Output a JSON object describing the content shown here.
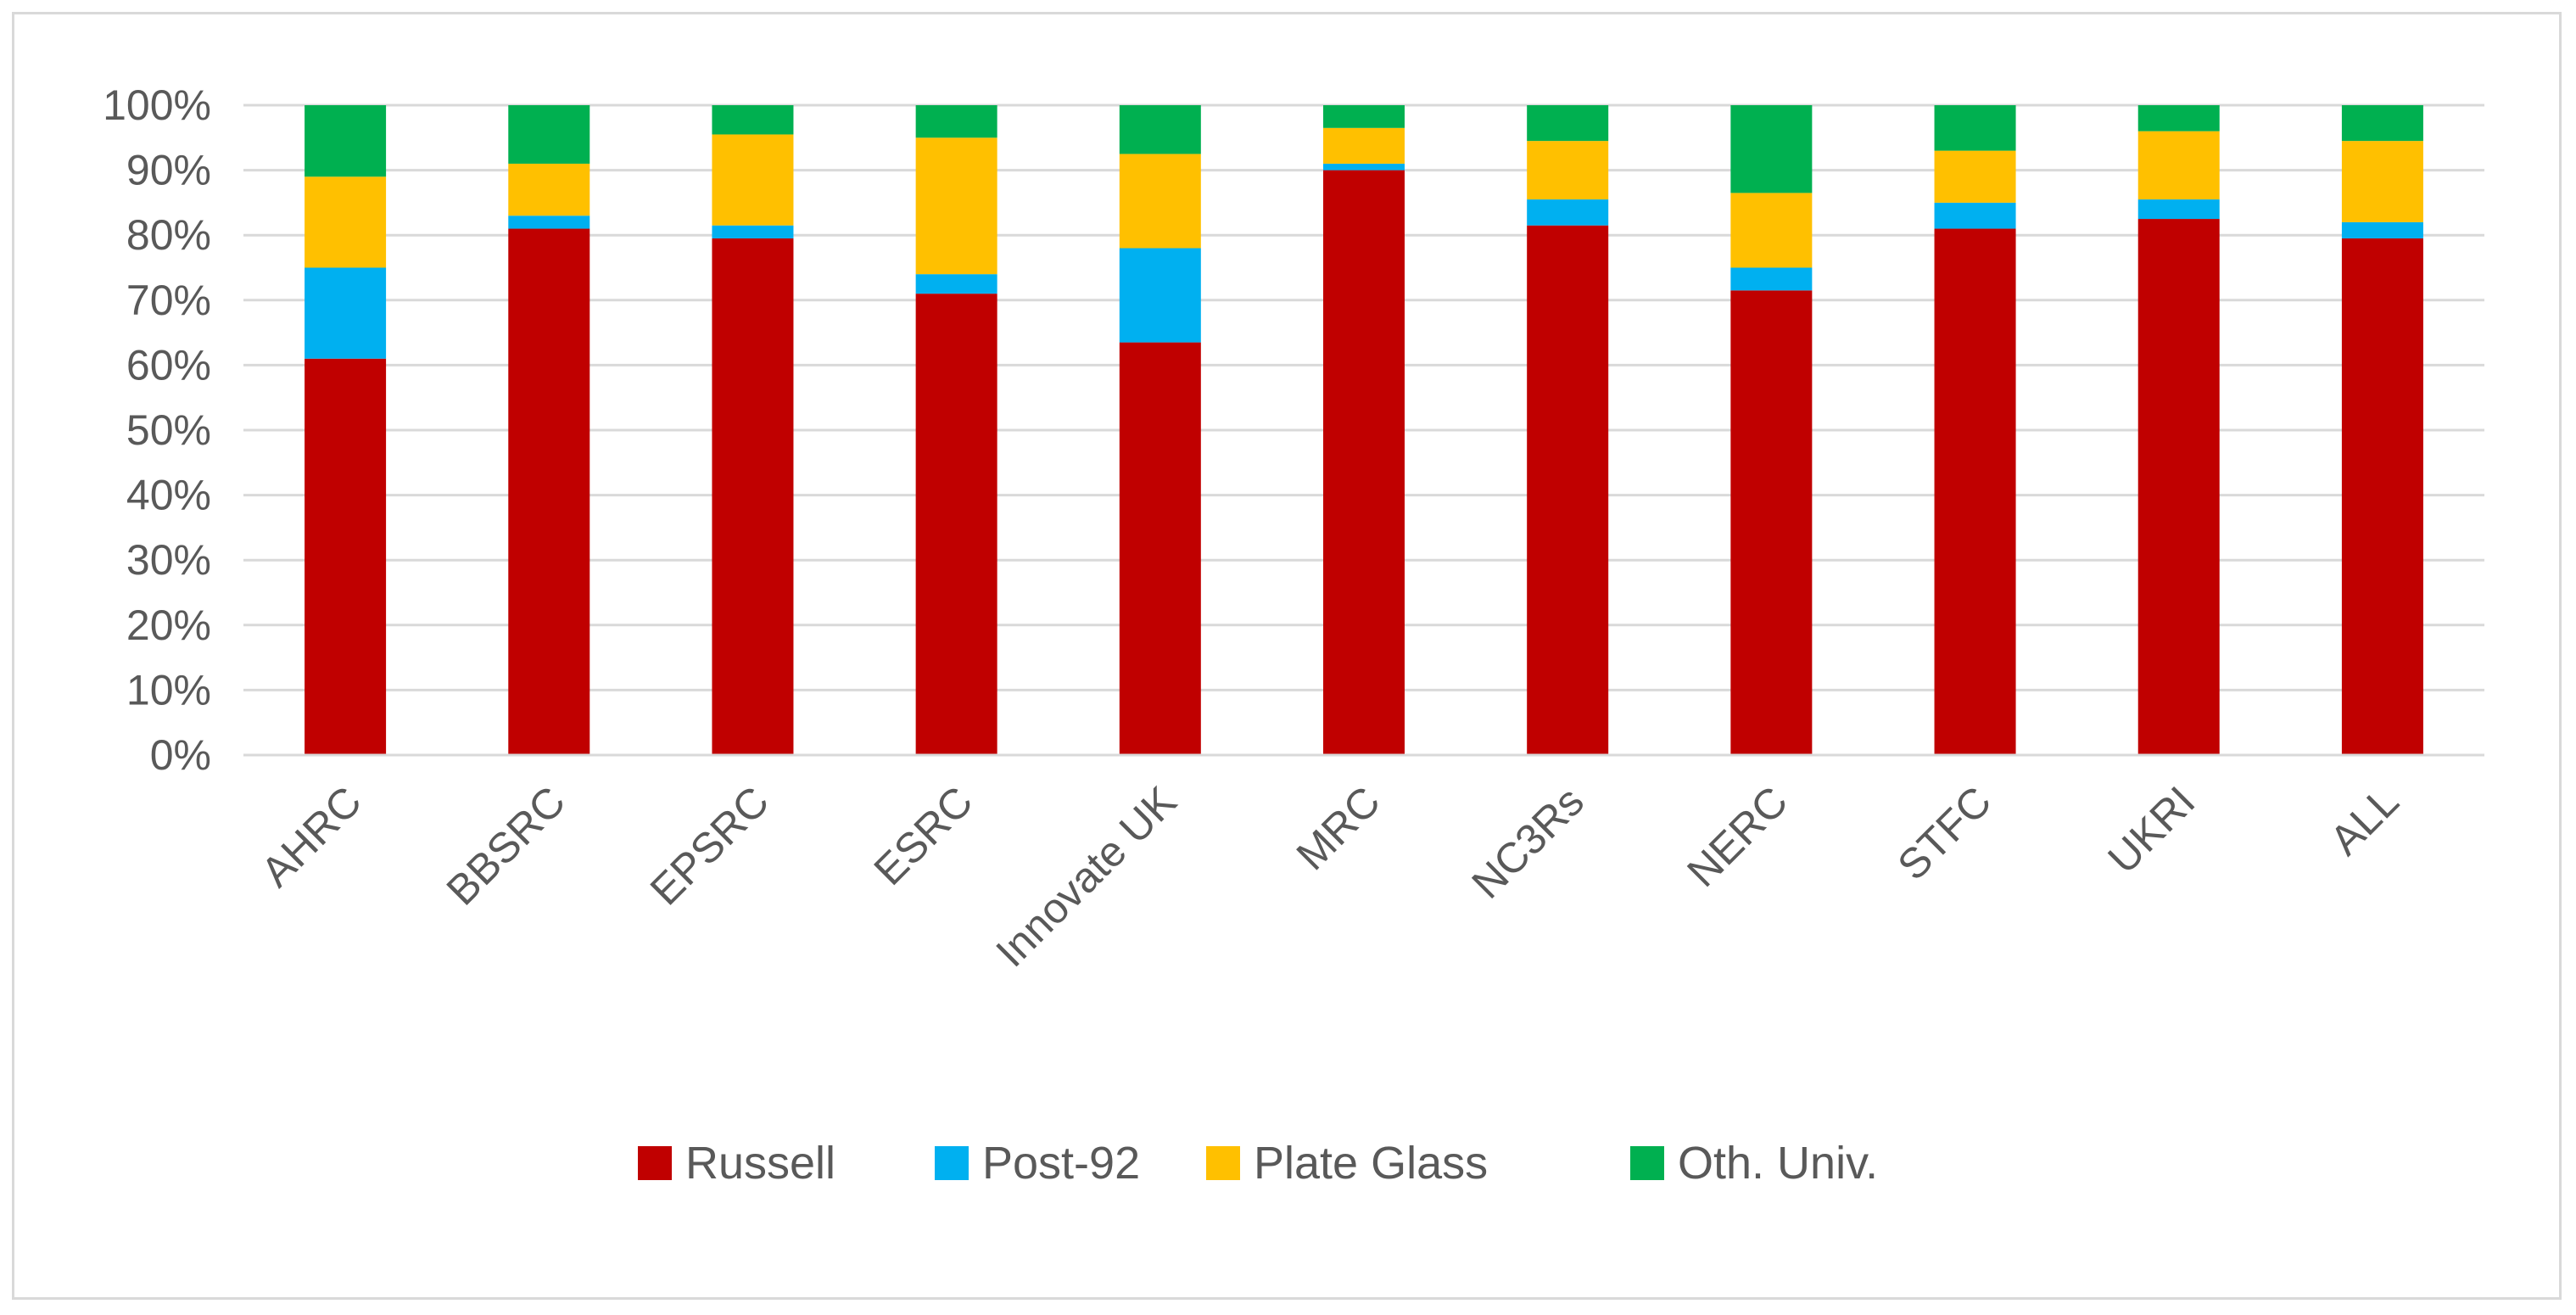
{
  "chart_data": {
    "type": "bar",
    "stacked": true,
    "categories": [
      "AHRC",
      "BBSRC",
      "EPSRC",
      "ESRC",
      "Innovate UK",
      "MRC",
      "NC3Rs",
      "NERC",
      "STFC",
      "UKRI",
      "ALL"
    ],
    "series": [
      {
        "name": "Russell",
        "color": "#c00000",
        "values": [
          61,
          81,
          79.5,
          71,
          63.5,
          90,
          81.5,
          71.5,
          81,
          82.5,
          79.5
        ]
      },
      {
        "name": "Post-92",
        "color": "#00b0f0",
        "values": [
          14,
          2,
          2,
          3,
          14.5,
          1,
          4,
          3.5,
          4,
          3,
          2.5
        ]
      },
      {
        "name": "Plate Glass",
        "color": "#ffc000",
        "values": [
          14,
          8,
          14,
          21,
          14.5,
          5.5,
          9,
          11.5,
          8,
          10.5,
          12.5
        ]
      },
      {
        "name": "Oth. Univ.",
        "color": "#00b050",
        "values": [
          11,
          9,
          4.5,
          5,
          7.5,
          3.5,
          5.5,
          13.5,
          7,
          4,
          5.5
        ]
      }
    ],
    "y_ticks": [
      "0%",
      "10%",
      "20%",
      "30%",
      "40%",
      "50%",
      "60%",
      "70%",
      "80%",
      "90%",
      "100%"
    ],
    "ylim": [
      0,
      100
    ],
    "grid": true,
    "gridline_color": "#d9d9d9",
    "legend_position": "bottom"
  }
}
